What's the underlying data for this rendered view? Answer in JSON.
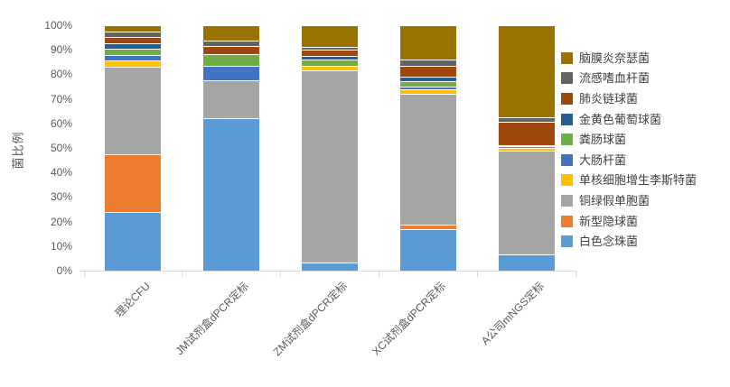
{
  "chart_data": {
    "type": "bar",
    "subtype": "stacked-100",
    "title": "",
    "xlabel": "",
    "ylabel": "菌比例",
    "ylim": [
      0,
      100
    ],
    "grid": false,
    "legend_position": "right",
    "y_tick_labels": [
      "0%",
      "10%",
      "20%",
      "30%",
      "40%",
      "50%",
      "60%",
      "70%",
      "80%",
      "90%",
      "100%"
    ],
    "categories": [
      "理论CFU",
      "JM试剂盒dPCR定标",
      "ZM试剂盒dPCR定标",
      "XC试剂盒dPCR定标",
      "A公司mNGS定标"
    ],
    "series": [
      {
        "name": "白色念珠菌",
        "color": "#5B9BD5",
        "values": [
          24.0,
          62.0,
          3.3,
          17.0,
          6.7
        ]
      },
      {
        "name": "新型隐球菌",
        "color": "#ED7D31",
        "values": [
          23.5,
          0.0,
          0.0,
          1.8,
          0.0
        ]
      },
      {
        "name": "铜绿假单胞菌",
        "color": "#A5A5A5",
        "values": [
          35.7,
          15.5,
          78.5,
          53.3,
          42.3
        ]
      },
      {
        "name": "单核细胞增生李斯特菌",
        "color": "#FFC000",
        "values": [
          2.4,
          0.0,
          1.6,
          1.8,
          1.1
        ]
      },
      {
        "name": "大肠杆菌",
        "color": "#4472C4",
        "values": [
          2.4,
          6.0,
          0.0,
          1.2,
          0.0
        ]
      },
      {
        "name": "粪肠球菌",
        "color": "#70AD47",
        "values": [
          2.4,
          4.6,
          2.7,
          2.3,
          0.5
        ]
      },
      {
        "name": "金黄色葡萄球菌",
        "color": "#255E91",
        "values": [
          2.4,
          0.0,
          1.3,
          1.6,
          0.5
        ]
      },
      {
        "name": "肺炎链球菌",
        "color": "#9E480E",
        "values": [
          2.4,
          3.4,
          2.6,
          4.5,
          9.7
        ]
      },
      {
        "name": "流感嗜血杆菌",
        "color": "#636363",
        "values": [
          2.4,
          2.3,
          1.1,
          2.7,
          1.7
        ]
      },
      {
        "name": "脑膜炎奈瑟菌",
        "color": "#997300",
        "values": [
          2.4,
          6.2,
          8.9,
          13.8,
          37.5
        ]
      }
    ],
    "legend_note": "legend lists series top-to-bottom in reverse stacking order",
    "axis_color": "#D9D9D9",
    "axis_text_color": "#595959",
    "legend_text_color": "#404040"
  }
}
